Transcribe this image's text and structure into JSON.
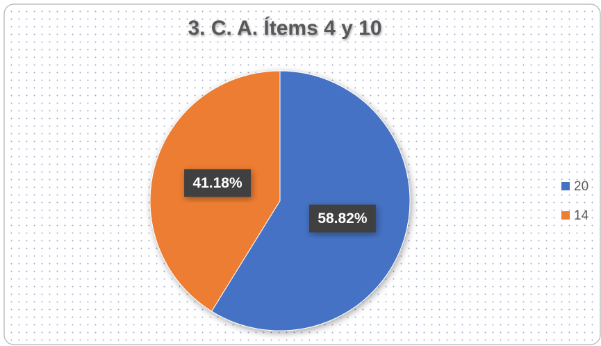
{
  "chart_data": {
    "type": "pie",
    "title": "3. C. A.  Ítems 4 y 10",
    "categories": [
      "20",
      "14"
    ],
    "values": [
      58.82,
      41.18
    ],
    "value_labels": [
      "58.82%",
      "41.18%"
    ],
    "colors": [
      "#4472c4",
      "#ed7d31"
    ],
    "legend": "right"
  }
}
